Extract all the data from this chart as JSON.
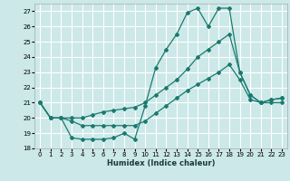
{
  "xlabel": "Humidex (Indice chaleur)",
  "xlim": [
    -0.5,
    23.5
  ],
  "ylim": [
    18,
    27.5
  ],
  "yticks": [
    18,
    19,
    20,
    21,
    22,
    23,
    24,
    25,
    26,
    27
  ],
  "xticks": [
    0,
    1,
    2,
    3,
    4,
    5,
    6,
    7,
    8,
    9,
    10,
    11,
    12,
    13,
    14,
    15,
    16,
    17,
    18,
    19,
    20,
    21,
    22,
    23
  ],
  "bg_color": "#cce8e8",
  "grid_color": "#ffffff",
  "line_color": "#1a7a6e",
  "lines": [
    {
      "x": [
        0,
        1,
        2,
        3,
        4,
        5,
        6,
        7,
        8,
        9,
        10,
        11,
        12,
        13,
        14,
        15,
        16,
        17,
        18,
        19,
        20,
        21,
        22,
        23
      ],
      "y": [
        21.0,
        20.0,
        20.0,
        18.7,
        18.6,
        18.6,
        18.6,
        18.7,
        19.0,
        18.6,
        20.8,
        23.3,
        24.5,
        25.5,
        26.9,
        27.2,
        26.0,
        27.2,
        27.2,
        23.0,
        21.5,
        21.0,
        21.2,
        21.3
      ]
    },
    {
      "x": [
        0,
        1,
        2,
        3,
        4,
        5,
        6,
        7,
        8,
        9,
        10,
        11,
        12,
        13,
        14,
        15,
        16,
        17,
        18,
        19,
        20,
        21,
        22,
        23
      ],
      "y": [
        21.0,
        20.0,
        20.0,
        20.0,
        20.0,
        20.2,
        20.4,
        20.5,
        20.6,
        20.7,
        21.0,
        21.5,
        22.0,
        22.5,
        23.2,
        24.0,
        24.5,
        25.0,
        25.5,
        23.0,
        21.5,
        21.0,
        21.2,
        21.3
      ]
    },
    {
      "x": [
        0,
        1,
        2,
        3,
        4,
        5,
        6,
        7,
        8,
        9,
        10,
        11,
        12,
        13,
        14,
        15,
        16,
        17,
        18,
        19,
        20,
        21,
        22,
        23
      ],
      "y": [
        21.0,
        20.0,
        20.0,
        19.8,
        19.5,
        19.5,
        19.5,
        19.5,
        19.5,
        19.5,
        19.8,
        20.3,
        20.8,
        21.3,
        21.8,
        22.2,
        22.6,
        23.0,
        23.5,
        22.5,
        21.2,
        21.0,
        21.0,
        21.0
      ]
    }
  ]
}
